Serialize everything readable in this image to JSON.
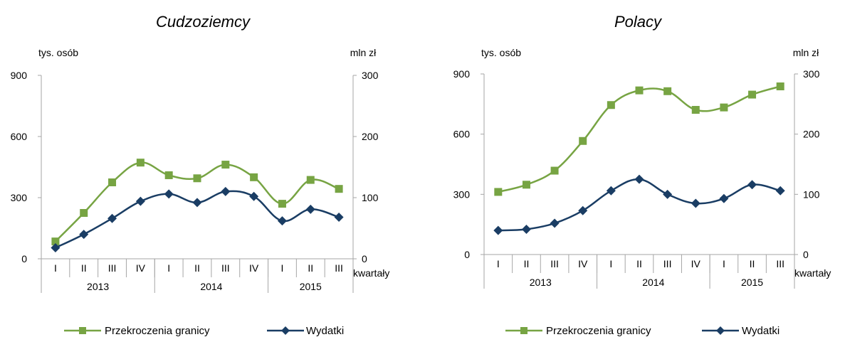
{
  "colors": {
    "series1": "#77a443",
    "series2": "#1a3d64",
    "axis": "#a6a6a6"
  },
  "chart_data": [
    {
      "type": "line",
      "title": "Cudzoziemcy",
      "ylabel_left": "tys. osób",
      "ylabel_right": "mln zł",
      "xlabel": "kwartały",
      "left_axis": {
        "ylim": [
          0,
          900
        ],
        "ticks": [
          0,
          300,
          600,
          900
        ]
      },
      "right_axis": {
        "ylim": [
          0,
          300
        ],
        "ticks": [
          0,
          100,
          200,
          300
        ]
      },
      "categories": [
        "I",
        "II",
        "III",
        "IV",
        "I",
        "II",
        "III",
        "IV",
        "I",
        "II",
        "III"
      ],
      "year_groups": [
        {
          "label": "2013",
          "span": 4
        },
        {
          "label": "2014",
          "span": 4
        },
        {
          "label": "2015",
          "span": 3
        }
      ],
      "grid": false,
      "legend": "bottom",
      "series": [
        {
          "name": "Przekroczenia granicy",
          "axis": "left",
          "marker": "square",
          "color": "#77a443",
          "values": [
            85,
            225,
            375,
            472,
            410,
            395,
            462,
            400,
            270,
            387,
            343
          ]
        },
        {
          "name": "Wydatki",
          "axis": "right",
          "marker": "diamond",
          "color": "#1a3d64",
          "values": [
            18,
            40,
            66,
            94,
            106,
            92,
            110,
            102,
            62,
            81,
            68
          ]
        }
      ]
    },
    {
      "type": "line",
      "title": "Polacy",
      "ylabel_left": "tys. osób",
      "ylabel_right": "mln zł",
      "xlabel": "kwartały",
      "left_axis": {
        "ylim": [
          0,
          900
        ],
        "ticks": [
          0,
          300,
          600,
          900
        ]
      },
      "right_axis": {
        "ylim": [
          0,
          300
        ],
        "ticks": [
          0,
          100,
          200,
          300
        ]
      },
      "categories": [
        "I",
        "II",
        "III",
        "IV",
        "I",
        "II",
        "III",
        "IV",
        "I",
        "II",
        "III"
      ],
      "year_groups": [
        {
          "label": "2013",
          "span": 4
        },
        {
          "label": "2014",
          "span": 4
        },
        {
          "label": "2015",
          "span": 3
        }
      ],
      "grid": false,
      "legend": "bottom",
      "series": [
        {
          "name": "Przekroczenia granicy",
          "axis": "left",
          "marker": "square",
          "color": "#77a443",
          "values": [
            312,
            348,
            418,
            566,
            745,
            818,
            814,
            721,
            733,
            797,
            838
          ]
        },
        {
          "name": "Wydatki",
          "axis": "right",
          "marker": "diamond",
          "color": "#1a3d64",
          "values": [
            40,
            42,
            52,
            73,
            106,
            125,
            100,
            85,
            93,
            116,
            106
          ]
        }
      ]
    }
  ]
}
